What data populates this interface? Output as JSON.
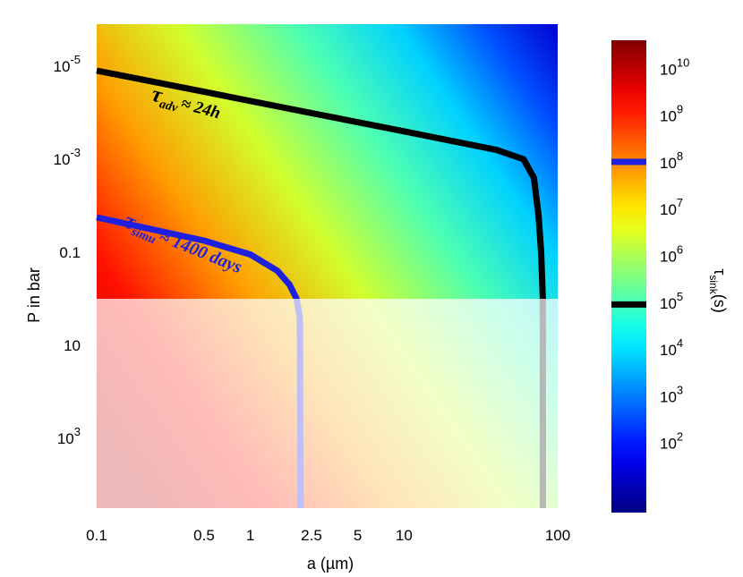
{
  "chart_data": {
    "type": "heatmap",
    "title": "",
    "xlabel": "a (µm)",
    "ylabel": "P in bar",
    "x_scale": "log",
    "y_scale": "log",
    "y_inverted": true,
    "xlim": [
      0.1,
      100
    ],
    "ylim_bar": [
      1.25e-06,
      31600
    ],
    "x_ticks": [
      {
        "value": 0.1,
        "label": "0.1"
      },
      {
        "value": 0.5,
        "label": "0.5"
      },
      {
        "value": 1,
        "label": "1"
      },
      {
        "value": 2.5,
        "label": "2.5"
      },
      {
        "value": 5,
        "label": "5"
      },
      {
        "value": 10,
        "label": "10"
      },
      {
        "value": 100,
        "label": "100"
      }
    ],
    "y_ticks": [
      {
        "value": 1e-05,
        "base": "10",
        "exp": "-5"
      },
      {
        "value": 0.001,
        "base": "10",
        "exp": "-3"
      },
      {
        "value": 0.1,
        "base": "0.1",
        "exp": ""
      },
      {
        "value": 10,
        "base": "10",
        "exp": ""
      },
      {
        "value": 1000,
        "base": "10",
        "exp": "3"
      }
    ],
    "colorbar": {
      "label_main": "τ",
      "label_sub": "sink",
      "label_tail": "(s)",
      "range_log10": [
        0.5,
        10.6
      ],
      "ticks": [
        {
          "exp": 10,
          "label_base": "10",
          "label_exp": "10"
        },
        {
          "exp": 9,
          "label_base": "10",
          "label_exp": "9"
        },
        {
          "exp": 8,
          "label_base": "10",
          "label_exp": "8"
        },
        {
          "exp": 7,
          "label_base": "10",
          "label_exp": "7"
        },
        {
          "exp": 6,
          "label_base": "10",
          "label_exp": "6"
        },
        {
          "exp": 5,
          "label_base": "10",
          "label_exp": "5"
        },
        {
          "exp": 4,
          "label_base": "10",
          "label_exp": "4"
        },
        {
          "exp": 3,
          "label_base": "10",
          "label_exp": "3"
        },
        {
          "exp": 2,
          "label_base": "10",
          "label_exp": "2"
        }
      ],
      "markers": [
        {
          "log10": 8.0,
          "color": "#1f1fe0"
        },
        {
          "log10": 4.95,
          "color": "#000000"
        }
      ]
    },
    "shaded_region": {
      "p_bar_from": 1.0,
      "p_bar_to": 31600,
      "overlay": "#ffffff",
      "opacity": 0.72
    },
    "contours": [
      {
        "name": "tau_adv",
        "color": "#000000",
        "points": [
          [
            0.1,
            1.25e-05
          ],
          [
            0.5,
            3.56e-05
          ],
          [
            2.5,
            0.000102
          ],
          [
            10,
            0.000251
          ],
          [
            40,
            0.000631
          ],
          [
            60,
            0.001
          ],
          [
            70,
            0.00251
          ],
          [
            75,
            0.0158
          ],
          [
            78,
            0.1
          ],
          [
            80,
            1
          ],
          [
            80,
            31600
          ]
        ]
      },
      {
        "name": "tau_simu",
        "color": "#1f1fe0",
        "points": [
          [
            0.1,
            0.0178
          ],
          [
            0.5,
            0.0562
          ],
          [
            1.0,
            0.112
          ],
          [
            1.5,
            0.25
          ],
          [
            1.8,
            0.5
          ],
          [
            2.0,
            1.0
          ],
          [
            2.1,
            2.5
          ],
          [
            2.12,
            31600
          ]
        ]
      }
    ],
    "annotations": [
      {
        "target": "tau_adv",
        "tau": "τ",
        "sub": "adv",
        "text": "≈ 24h",
        "color": "#000000"
      },
      {
        "target": "tau_simu",
        "tau": "τ",
        "sub": "simu",
        "text": "≈ 1400 days",
        "color": "#1f1fe0"
      }
    ]
  }
}
